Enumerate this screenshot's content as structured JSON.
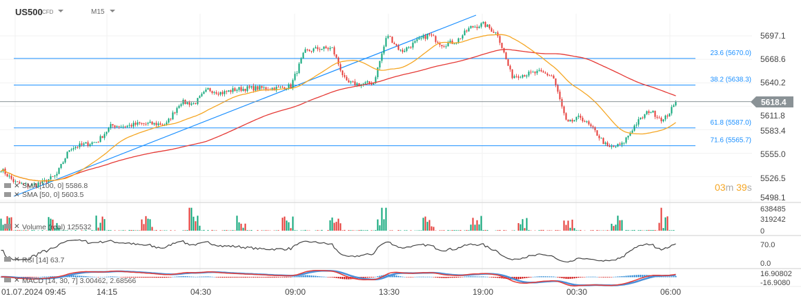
{
  "header": {
    "symbol": "US500",
    "instrument_type": "CFD",
    "timeframe": "M15"
  },
  "price_axis": {
    "ticks": [
      "5697.1",
      "5668.6",
      "5640.2",
      "5611.8",
      "5583.4",
      "5555.0",
      "5526.5",
      "5498.1"
    ],
    "current_price": "5618.4",
    "current_price_value": 5618.4
  },
  "fibonacci": [
    {
      "label": "23.6 (5670.0)",
      "price": 5670.0
    },
    {
      "label": "38.2 (5638.3)",
      "price": 5638.3
    },
    {
      "label": "61.8 (5587.0)",
      "price": 5587.0
    },
    {
      "label": "71.6 (5565.7)",
      "price": 5565.7
    }
  ],
  "countdown": {
    "minutes": "03",
    "m": "m",
    "seconds": "39",
    "s": "s"
  },
  "indicators": {
    "sma_slow": {
      "label": "SMA [100, 0]",
      "value": "5586.8",
      "color": "#e53935"
    },
    "sma_fast": {
      "label": "SMA [50, 0]",
      "value": "5603.5",
      "color": "#f5a623"
    },
    "volume": {
      "label": "Volume  (real)",
      "value": "125532",
      "ticks": [
        "638485",
        "319242",
        "0"
      ]
    },
    "rsi": {
      "label": "RSI  [14]",
      "value": "63.7",
      "ticks": [
        "70.0",
        "0.0"
      ]
    },
    "macd": {
      "label": "MACD  [14, 30, 7]",
      "value": "3.00462,   2.68566",
      "ticks": [
        "16.90802",
        "-16.9080"
      ]
    }
  },
  "time_axis": [
    "01.07.2024  09:45",
    "14:15",
    "04:30",
    "09:00",
    "13:30",
    "19:00",
    "00:30",
    "06:00"
  ],
  "colors": {
    "up": "#0ca678",
    "down": "#e53935",
    "trendline": "#1a8fff",
    "fib": "#1a8fff",
    "price_tag": "#8a9296"
  },
  "chart_data": {
    "type": "candlestick",
    "symbol": "US500",
    "timeframe": "M15",
    "ylim": [
      5498.1,
      5711
    ],
    "close_samples": [
      5538.3,
      5521.8,
      5517.7,
      5521.8,
      5530,
      5563,
      5567,
      5571,
      5590,
      5589,
      5591.8,
      5591.8,
      5591.8,
      5618,
      5616,
      5633,
      5628.8,
      5633,
      5634.5,
      5634.5,
      5634.5,
      5637,
      5678,
      5682,
      5682,
      5641,
      5639,
      5641,
      5698.7,
      5678,
      5688.9,
      5698.7,
      5686.4,
      5690.5,
      5707,
      5711,
      5698.7,
      5649,
      5651,
      5653.5,
      5649,
      5591.8,
      5600,
      5583.5,
      5563,
      5567,
      5591.8,
      5608,
      5596,
      5618.4
    ]
  }
}
